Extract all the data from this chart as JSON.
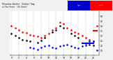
{
  "title": "Milwaukee Weather Outdoor Temp vs Dew Point (24 Hours)",
  "background_color": "#f0f0f0",
  "plot_bg_color": "#ffffff",
  "grid_color": "#aaaaaa",
  "temp_color": "#ff0000",
  "dew_color": "#0000ff",
  "dot_color": "#000000",
  "title_bar_blue": "#0000cc",
  "title_bar_red": "#ff0000",
  "ylim": [
    10,
    55
  ],
  "xlim": [
    -0.5,
    23.5
  ],
  "marker_size": 1.8,
  "temp_x": [
    0,
    1,
    2,
    3,
    4,
    5,
    6,
    7,
    8,
    9,
    10,
    11,
    12,
    13,
    14,
    15,
    16,
    17,
    18,
    19,
    20,
    21,
    22,
    23
  ],
  "temp_y": [
    40,
    38,
    36,
    34,
    33,
    31,
    30,
    29,
    28,
    30,
    32,
    36,
    38,
    44,
    42,
    38,
    36,
    34,
    32,
    30,
    28,
    26,
    24,
    40
  ],
  "dew_x": [
    5,
    6,
    7,
    8,
    9,
    10,
    11,
    12,
    13,
    14,
    15,
    16,
    17,
    18,
    19,
    20,
    21,
    22,
    23
  ],
  "dew_y": [
    18,
    17,
    16,
    18,
    19,
    20,
    18,
    17,
    19,
    20,
    21,
    19,
    18,
    17,
    19,
    20,
    24,
    24,
    15
  ],
  "black_x": [
    0,
    1,
    2,
    3,
    4,
    5,
    7,
    8,
    9,
    11,
    12,
    13,
    14,
    16,
    17,
    18,
    20,
    21,
    22
  ],
  "black_y": [
    32,
    30,
    28,
    26,
    25,
    24,
    23,
    25,
    28,
    34,
    36,
    40,
    38,
    32,
    30,
    28,
    22,
    21,
    20
  ],
  "blue_line_x": [
    19,
    22
  ],
  "blue_line_y": [
    22,
    22
  ],
  "red_line_x": [
    22,
    23
  ],
  "red_line_y": [
    35,
    35
  ],
  "xtick_step": 2,
  "ytick_vals": [
    15,
    20,
    25,
    30,
    35,
    40,
    45,
    50
  ],
  "ytick_labels": [
    "15",
    "20",
    "25",
    "30",
    "35",
    "40",
    "45",
    "50"
  ]
}
